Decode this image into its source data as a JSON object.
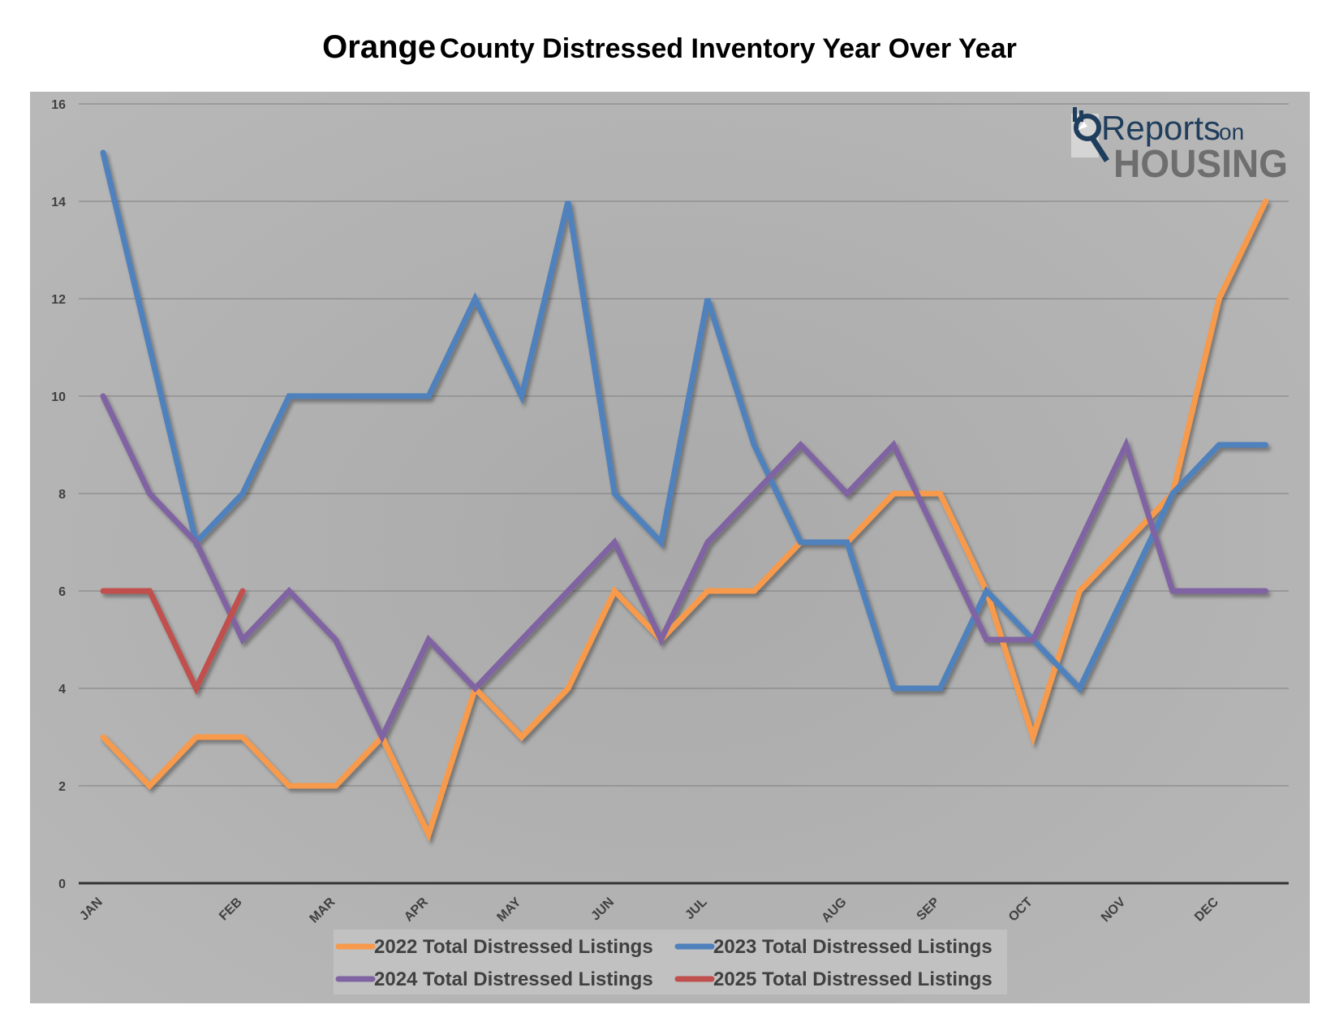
{
  "chart_data": {
    "type": "line",
    "title": "Orange County Distressed Inventory Year Over Year",
    "title_parts": [
      "Orange",
      "County Distressed Inventory Year Over Year"
    ],
    "ylim": [
      0,
      16
    ],
    "yticks": [
      0,
      2,
      4,
      6,
      8,
      10,
      12,
      14,
      16
    ],
    "grid": true,
    "legend_position": "bottom",
    "x_labels": [
      "JAN",
      "FEB",
      "MAR",
      "APR",
      "MAY",
      "JUN",
      "JUL",
      "AUG",
      "SEP",
      "OCT",
      "NOV",
      "DEC"
    ],
    "x_label_points": [
      0,
      3,
      5,
      7,
      9,
      11,
      13,
      16,
      18,
      20,
      22,
      24
    ],
    "series": [
      {
        "name": "2022 Total Distressed Listings",
        "color": "#F79A4C",
        "values": [
          3,
          2,
          3,
          3,
          2,
          2,
          3,
          1,
          4,
          3,
          4,
          6,
          5,
          6,
          6,
          7,
          7,
          8,
          8,
          6,
          3,
          6,
          7,
          8,
          12,
          14
        ]
      },
      {
        "name": "2023 Total Distressed Listings",
        "color": "#4F81BD",
        "values": [
          15,
          11,
          7,
          8,
          10,
          10,
          10,
          10,
          12,
          10,
          14,
          8,
          7,
          12,
          9,
          7,
          7,
          4,
          4,
          6,
          5,
          4,
          6,
          8,
          9,
          9
        ]
      },
      {
        "name": "2024 Total Distressed Listings",
        "color": "#8064A2",
        "values": [
          10,
          8,
          7,
          5,
          6,
          5,
          3,
          5,
          4,
          5,
          6,
          7,
          5,
          7,
          8,
          9,
          8,
          9,
          7,
          5,
          5,
          7,
          9,
          6,
          6,
          6
        ]
      },
      {
        "name": "2025 Total Distressed Listings",
        "color": "#C0504D",
        "values": [
          6,
          6,
          4,
          6
        ]
      }
    ]
  },
  "logo": {
    "line1": "Reports",
    "line1_suffix": "on",
    "line2": "HOUSING",
    "icon": "magnifier-chart-icon",
    "color_dark": "#1F3D5C",
    "color_gray": "#6E6E6E"
  }
}
